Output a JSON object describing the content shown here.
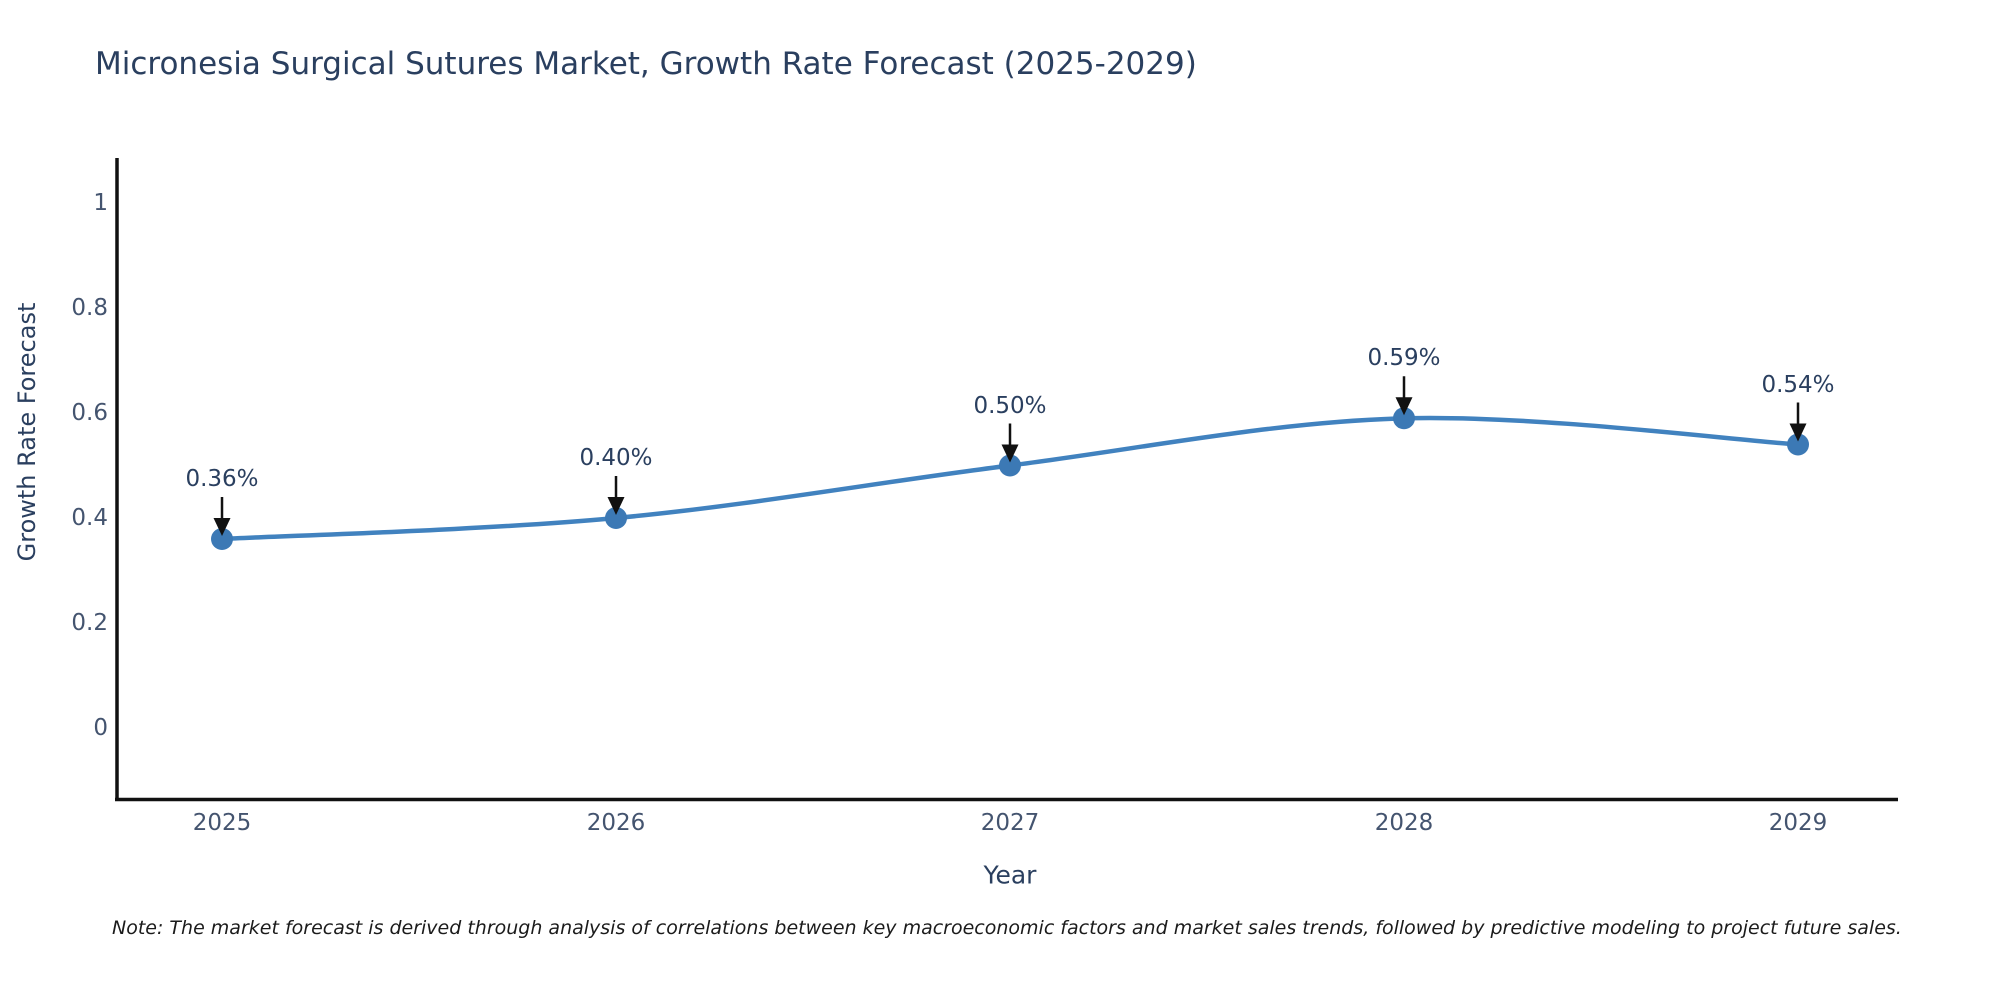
{
  "header": {
    "title": "Micronesia Surgical Sutures Market, Growth Rate Forecast (2025-2029)"
  },
  "footer": {
    "note": "Note: The market forecast is derived through analysis of correlations between key macroeconomic factors and market sales trends, followed by predictive modeling to project future sales."
  },
  "chart_data": {
    "type": "line",
    "line_shape": "spline",
    "title": "Micronesia Surgical Sutures Market, Growth Rate Forecast (2025-2029)",
    "xlabel": "Year",
    "ylabel": "Growth Rate Forecast",
    "x": [
      2025,
      2026,
      2027,
      2028,
      2029
    ],
    "y": [
      0.36,
      0.4,
      0.5,
      0.59,
      0.54
    ],
    "point_labels": [
      "0.36%",
      "0.40%",
      "0.50%",
      "0.59%",
      "0.54%"
    ],
    "annotation_style": "arrow-down-to-point",
    "xticks": {
      "values": [
        2025,
        2026,
        2027,
        2028,
        2029
      ],
      "labels": [
        "2025",
        "2026",
        "2027",
        "2028",
        "2029"
      ]
    },
    "yticks": {
      "values": [
        0,
        0.2,
        0.4,
        0.6,
        0.8,
        1
      ],
      "labels": [
        "0",
        "0.2",
        "0.4",
        "0.6",
        "0.8",
        "1"
      ]
    },
    "xlim": [
      2024.7284,
      2029.2538
    ],
    "ylim": [
      -0.1352,
      1.0819
    ],
    "grid": false,
    "legend": false,
    "colors": {
      "line": "#4182bf",
      "marker": "#3c79b5",
      "axis": "#111111",
      "title_text": "#2a3f5f",
      "tick_text": "#44546f",
      "annotation_text": "#2a3f5f",
      "arrow": "#111111",
      "background": "#ffffff"
    }
  }
}
